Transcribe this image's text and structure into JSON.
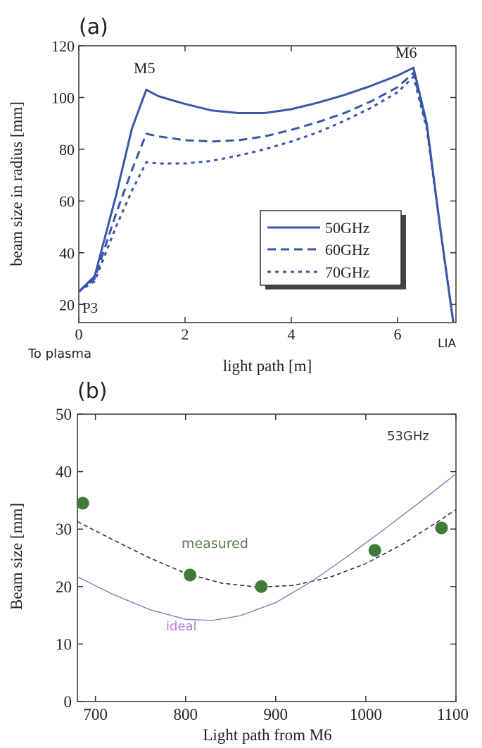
{
  "chart_data": [
    {
      "panel_label": "(a)",
      "type": "line",
      "xlabel": "light path [m]",
      "ylabel": "beam size in radius [mm]",
      "xlim": [
        0,
        7.1
      ],
      "ylim": [
        13,
        120
      ],
      "x_ticks": [
        0,
        2,
        4,
        6
      ],
      "y_ticks": [
        20,
        40,
        60,
        80,
        100,
        120
      ],
      "grid": false,
      "legend_position": "center-right",
      "annotations": {
        "m5": "M5",
        "m6": "M6",
        "p3": "P3",
        "to_plasma": "To plasma",
        "lia": "LIA"
      },
      "series": [
        {
          "name": "50GHz",
          "style": "solid",
          "color": "#3a56a8",
          "points": [
            [
              0,
              25
            ],
            [
              0.3,
              31
            ],
            [
              0.7,
              62
            ],
            [
              1.0,
              88
            ],
            [
              1.27,
              103
            ],
            [
              1.5,
              100.5
            ],
            [
              2.0,
              97.5
            ],
            [
              2.5,
              95
            ],
            [
              3.0,
              94
            ],
            [
              3.5,
              94
            ],
            [
              4.0,
              95.5
            ],
            [
              4.5,
              98
            ],
            [
              5.0,
              101
            ],
            [
              5.5,
              104.5
            ],
            [
              6.0,
              108.5
            ],
            [
              6.3,
              111.5
            ],
            [
              6.55,
              90
            ],
            [
              6.8,
              50
            ],
            [
              7.05,
              13
            ]
          ]
        },
        {
          "name": "60GHz",
          "style": "dashed",
          "color": "#3a56a8",
          "points": [
            [
              0,
              25
            ],
            [
              0.3,
              30
            ],
            [
              0.7,
              55
            ],
            [
              1.0,
              72
            ],
            [
              1.27,
              86
            ],
            [
              1.5,
              85
            ],
            [
              2.0,
              83.5
            ],
            [
              2.5,
              83
            ],
            [
              3.0,
              83.5
            ],
            [
              3.5,
              85
            ],
            [
              4.0,
              87.5
            ],
            [
              4.5,
              90.5
            ],
            [
              5.0,
              94
            ],
            [
              5.5,
              98.5
            ],
            [
              6.0,
              104
            ],
            [
              6.3,
              109.5
            ],
            [
              6.55,
              89
            ],
            [
              6.8,
              50
            ],
            [
              7.05,
              13
            ]
          ]
        },
        {
          "name": "70GHz",
          "style": "dotted",
          "color": "#3a56a8",
          "points": [
            [
              0,
              25
            ],
            [
              0.3,
              29
            ],
            [
              0.7,
              50
            ],
            [
              1.0,
              64
            ],
            [
              1.27,
              75
            ],
            [
              1.5,
              74.5
            ],
            [
              2.0,
              74.5
            ],
            [
              2.5,
              75.5
            ],
            [
              3.0,
              77.5
            ],
            [
              3.5,
              80
            ],
            [
              4.0,
              83
            ],
            [
              4.5,
              86.5
            ],
            [
              5.0,
              91
            ],
            [
              5.5,
              96
            ],
            [
              6.0,
              102
            ],
            [
              6.3,
              108
            ],
            [
              6.55,
              88
            ],
            [
              6.8,
              50
            ],
            [
              7.05,
              13
            ]
          ]
        }
      ]
    },
    {
      "panel_label": "(b)",
      "type": "scatter",
      "xlabel": "Light path from M6",
      "ylabel": "Beam size [mm]",
      "xlim": [
        680,
        1100
      ],
      "ylim": [
        0,
        50
      ],
      "x_ticks": [
        700,
        800,
        900,
        1000,
        1100
      ],
      "y_ticks": [
        0,
        10,
        20,
        30,
        40,
        50
      ],
      "grid": false,
      "frequency_label": "53GHz",
      "points_series": {
        "color": "#3f7a3a",
        "x": [
          686,
          805,
          884,
          1010,
          1084
        ],
        "y": [
          34.5,
          22,
          20,
          26.3,
          30.2
        ]
      },
      "fit_curves": [
        {
          "name": "measured",
          "style": "dashed",
          "color": "#333333",
          "label_color": "#5a7a4a",
          "points": [
            [
              680,
              31.3
            ],
            [
              720,
              28.1
            ],
            [
              760,
              25.0
            ],
            [
              800,
              22.3
            ],
            [
              840,
              20.6
            ],
            [
              880,
              19.9
            ],
            [
              920,
              20.2
            ],
            [
              960,
              21.6
            ],
            [
              1000,
              24.0
            ],
            [
              1040,
              27.3
            ],
            [
              1080,
              31.3
            ],
            [
              1100,
              33.4
            ]
          ]
        },
        {
          "name": "ideal",
          "style": "solid",
          "color": "#8a6cb8",
          "label_color": "#b87ad0",
          "points": [
            [
              680,
              21.7
            ],
            [
              720,
              18.6
            ],
            [
              760,
              16.0
            ],
            [
              800,
              14.3
            ],
            [
              830,
              14.1
            ],
            [
              860,
              14.9
            ],
            [
              900,
              17.2
            ],
            [
              940,
              20.9
            ],
            [
              980,
              25.3
            ],
            [
              1020,
              29.9
            ],
            [
              1060,
              34.7
            ],
            [
              1100,
              39.6
            ]
          ]
        }
      ]
    }
  ]
}
